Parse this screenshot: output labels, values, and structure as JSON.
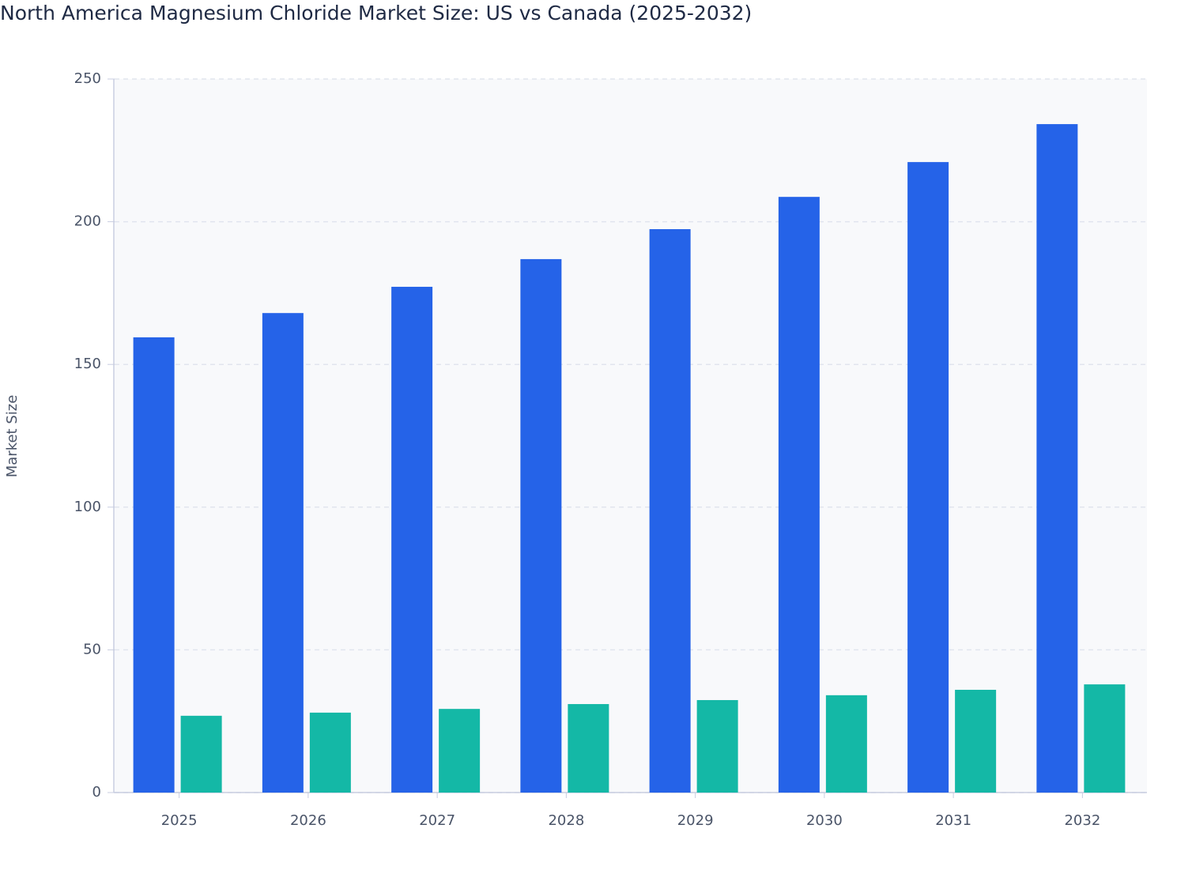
{
  "chart_data": {
    "type": "bar",
    "title": "North America Magnesium Chloride Market Size: US vs Canada (2025-2032)",
    "y_label": "Market Size",
    "categories": [
      "2025",
      "2026",
      "2027",
      "2028",
      "2029",
      "2030",
      "2031",
      "2032"
    ],
    "series": [
      {
        "color": "#2563e8",
        "values": [
          159.5,
          168.0,
          177.2,
          186.9,
          197.4,
          208.7,
          220.9,
          234.2
        ]
      },
      {
        "color": "#14b8a6",
        "values": [
          26.9,
          28.0,
          29.3,
          31.0,
          32.4,
          34.1,
          36.0,
          37.9
        ]
      }
    ],
    "ylim": [
      0,
      250
    ],
    "yticks": [
      0,
      50,
      100,
      150,
      200,
      250
    ],
    "grid": true
  }
}
